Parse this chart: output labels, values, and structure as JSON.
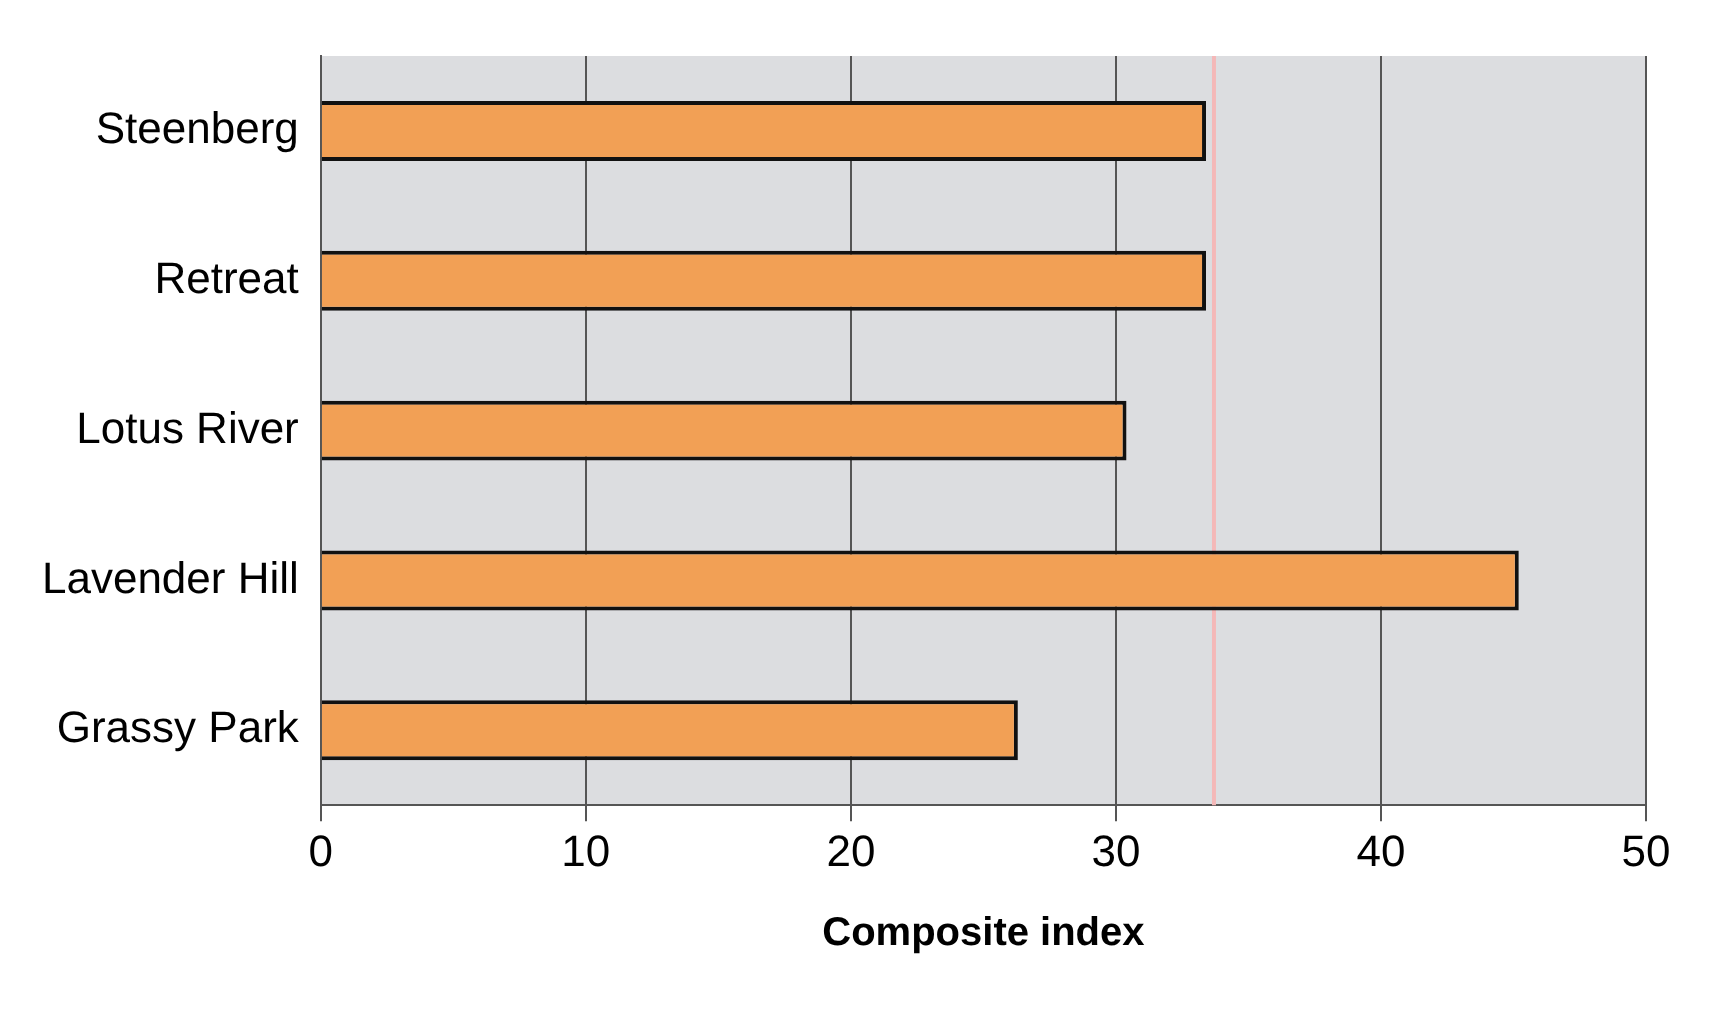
{
  "chart_data": {
    "type": "bar",
    "orientation": "horizontal",
    "xlabel": "Composite index",
    "categories": [
      "Steenberg",
      "Retreat",
      "Lotus River",
      "Lavender Hill",
      "Grassy Park"
    ],
    "values": [
      33.4,
      33.4,
      30.4,
      45.2,
      26.3
    ],
    "color": "#f2a055",
    "xlim": [
      0,
      50
    ],
    "xticks": [
      0,
      10,
      20,
      30,
      40,
      50
    ],
    "grid": "x",
    "ref_lines": [
      {
        "axis": "x",
        "value": 33.7,
        "color": "#f4b8b8"
      }
    ]
  }
}
